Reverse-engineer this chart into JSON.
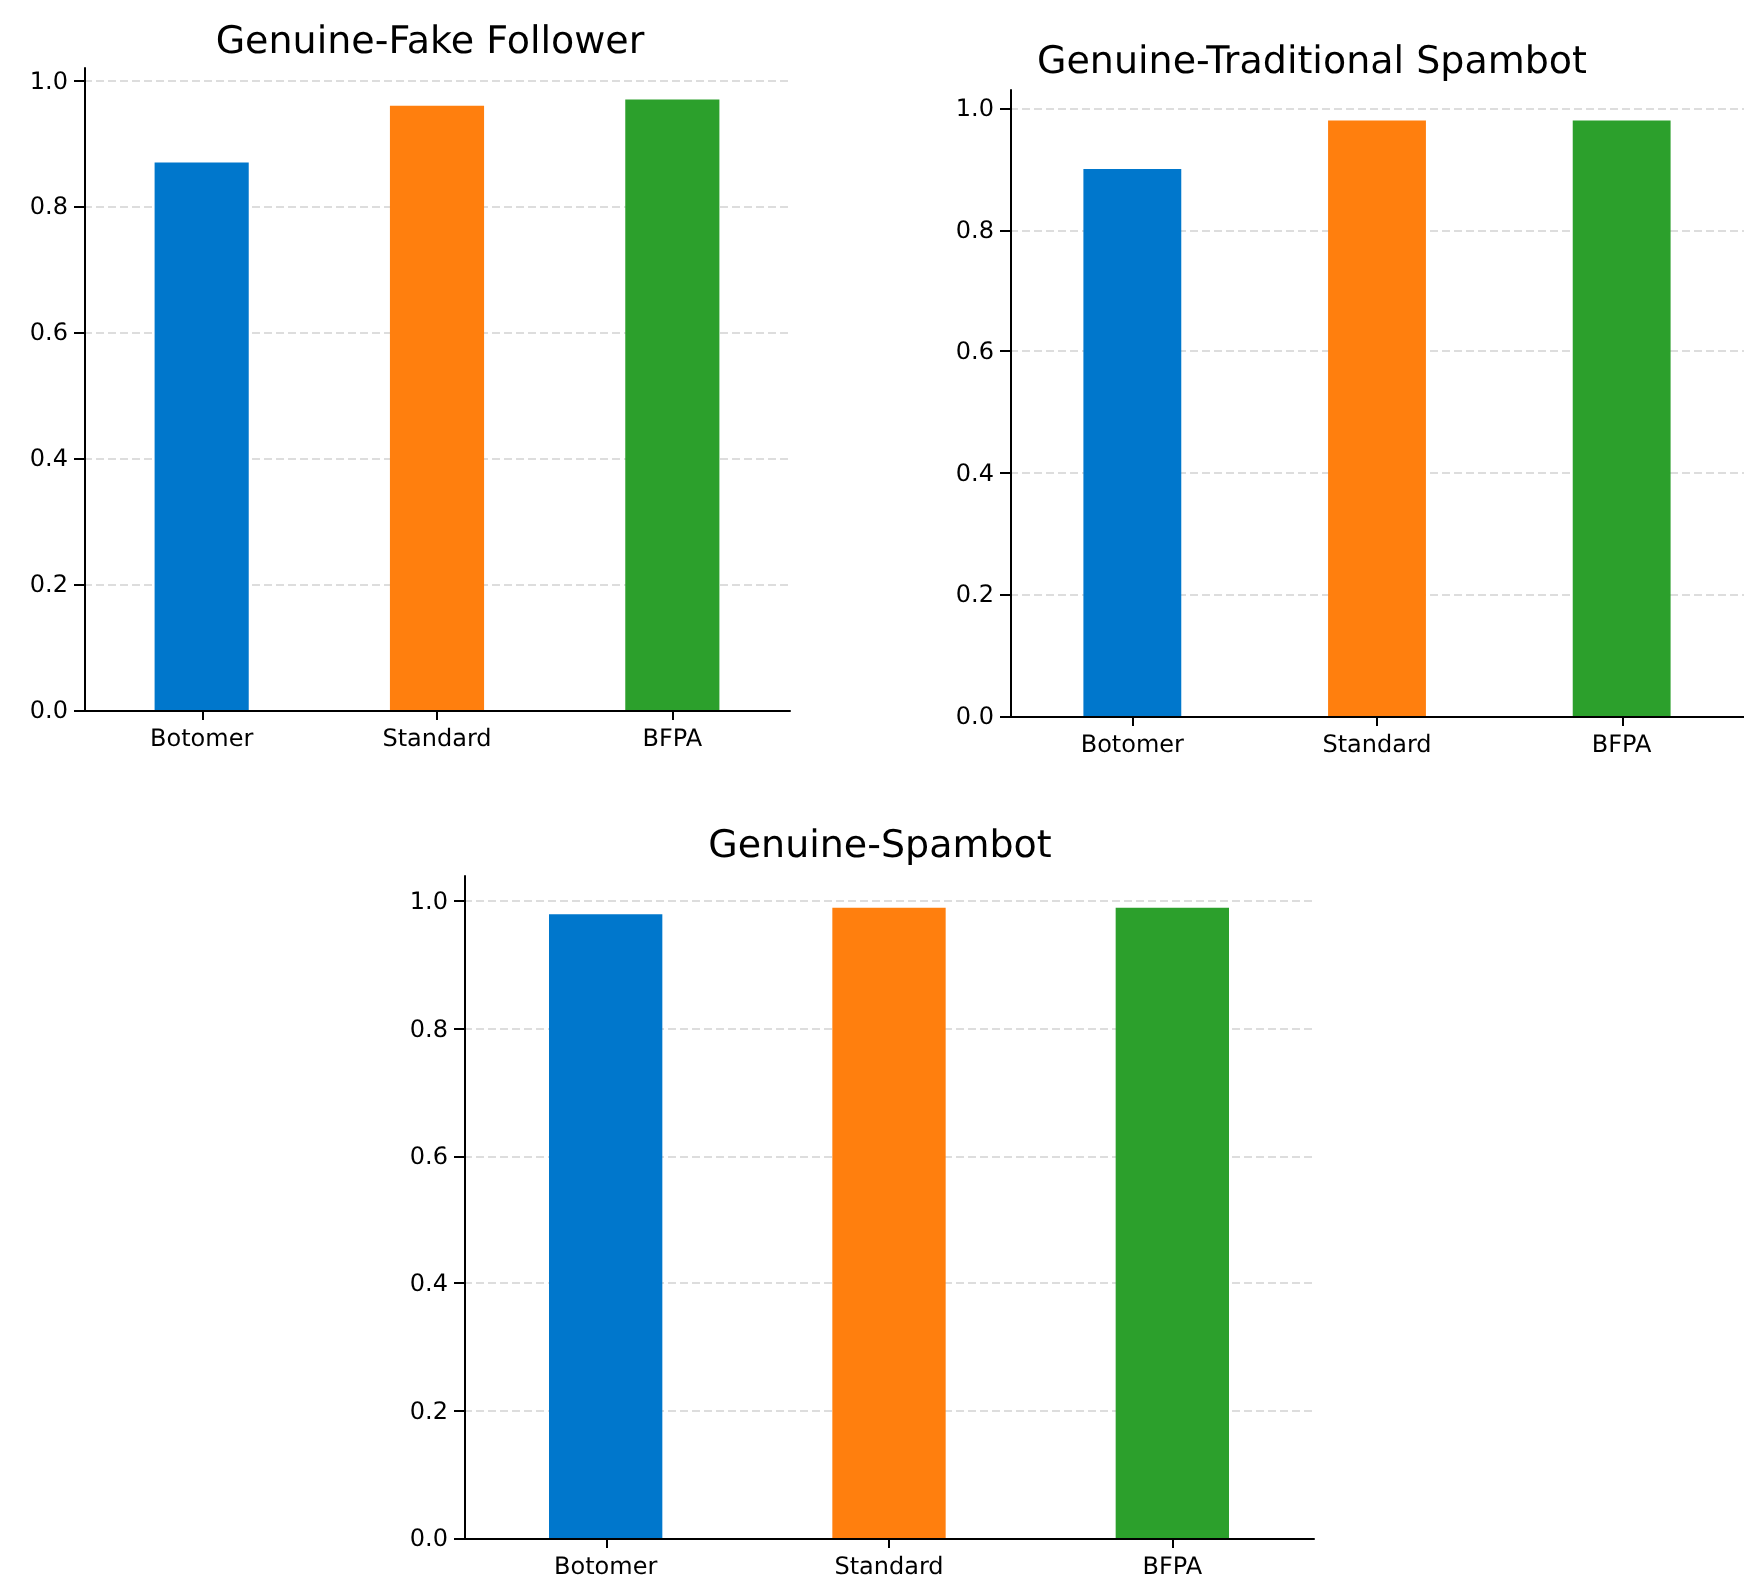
{
  "chart_data": [
    {
      "type": "bar",
      "title": "Genuine-Fake Follower",
      "categories": [
        "Botomer",
        "Standard",
        "BFPA"
      ],
      "values": [
        0.87,
        0.96,
        0.97
      ],
      "colors": [
        "#0077cc",
        "#ff7f0e",
        "#2ca02c"
      ],
      "ylim": [
        0,
        1.02
      ],
      "yticks": [
        {
          "value": 0,
          "label": "0.0"
        },
        {
          "value": 0.2,
          "label": "0.2"
        },
        {
          "value": 0.4,
          "label": "0.4"
        },
        {
          "value": 0.6,
          "label": "0.6"
        },
        {
          "value": 0.8,
          "label": "0.8"
        },
        {
          "value": 1,
          "label": "1.0"
        }
      ],
      "grid": "y"
    },
    {
      "type": "bar",
      "title": "Genuine-Traditional Spambot",
      "categories": [
        "Botomer",
        "Standard",
        "BFPA"
      ],
      "values": [
        0.9,
        0.98,
        0.98
      ],
      "colors": [
        "#0077cc",
        "#ff7f0e",
        "#2ca02c"
      ],
      "ylim": [
        0,
        1.03
      ],
      "yticks": [
        {
          "value": 0,
          "label": "0.0"
        },
        {
          "value": 0.2,
          "label": "0.2"
        },
        {
          "value": 0.4,
          "label": "0.4"
        },
        {
          "value": 0.6,
          "label": "0.6"
        },
        {
          "value": 0.8,
          "label": "0.8"
        },
        {
          "value": 1,
          "label": "1.0"
        }
      ],
      "grid": "y"
    },
    {
      "type": "bar",
      "title": "Genuine-Spambot",
      "categories": [
        "Botomer",
        "Standard",
        "BFPA"
      ],
      "values": [
        0.98,
        0.99,
        0.99
      ],
      "colors": [
        "#0077cc",
        "#ff7f0e",
        "#2ca02c"
      ],
      "ylim": [
        0,
        1.04
      ],
      "yticks": [
        {
          "value": 0,
          "label": "0.0"
        },
        {
          "value": 0.2,
          "label": "0.2"
        },
        {
          "value": 0.4,
          "label": "0.4"
        },
        {
          "value": 0.6,
          "label": "0.6"
        },
        {
          "value": 0.8,
          "label": "0.8"
        },
        {
          "value": 1,
          "label": "1.0"
        }
      ],
      "grid": "y"
    }
  ]
}
